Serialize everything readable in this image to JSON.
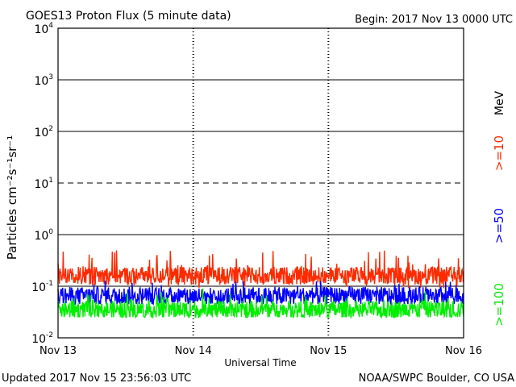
{
  "chart_data": {
    "type": "line",
    "title": "GOES13 Proton Flux (5 minute data)",
    "begin": "Begin: 2017 Nov 13 0000 UTC",
    "xlabel": "Universal Time",
    "ylabel": "Particles cm⁻²s⁻¹sr⁻¹",
    "unit_label": "MeV",
    "y_scale": "log",
    "ylim": [
      0.01,
      10000
    ],
    "xlim_days": [
      0,
      3
    ],
    "x_ticks": [
      {
        "label": "Nov 13",
        "day": 0
      },
      {
        "label": "Nov 14",
        "day": 1
      },
      {
        "label": "Nov 15",
        "day": 2
      },
      {
        "label": "Nov 16",
        "day": 3
      }
    ],
    "y_ticks": [
      {
        "base": "10",
        "exp": "-2",
        "value": 0.01
      },
      {
        "base": "10",
        "exp": "-1",
        "value": 0.1
      },
      {
        "base": "10",
        "exp": "0",
        "value": 1
      },
      {
        "base": "10",
        "exp": "1",
        "value": 10
      },
      {
        "base": "10",
        "exp": "2",
        "value": 100
      },
      {
        "base": "10",
        "exp": "3",
        "value": 1000
      },
      {
        "base": "10",
        "exp": "4",
        "value": 10000
      }
    ],
    "reference_lines": [
      {
        "value": 10,
        "style": "dashed"
      }
    ],
    "series": [
      {
        "name": ">=10",
        "color": "#ff2a00",
        "typical": 0.16,
        "min": 0.09,
        "max": 0.5
      },
      {
        "name": ">=50",
        "color": "#0000ff",
        "typical": 0.065,
        "min": 0.045,
        "max": 0.13
      },
      {
        "name": ">=100",
        "color": "#00ee00",
        "typical": 0.035,
        "min": 0.025,
        "max": 0.09
      }
    ]
  },
  "footer": {
    "updated": "Updated 2017 Nov 15 23:56:03 UTC",
    "source": "NOAA/SWPC Boulder, CO USA"
  }
}
